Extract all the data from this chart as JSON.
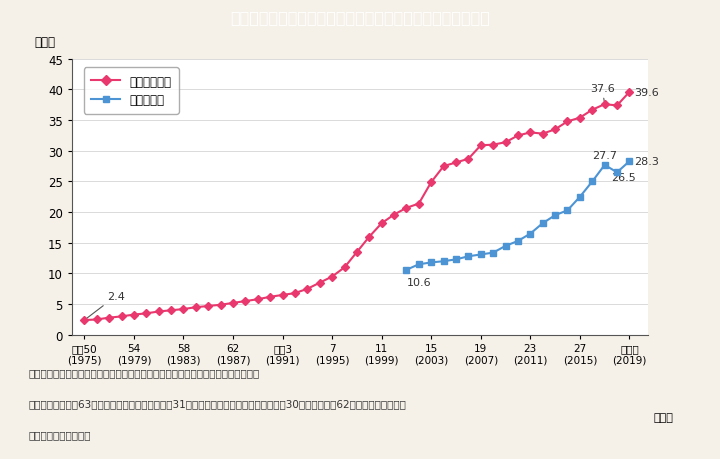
{
  "title": "Ｉ－１－５図　国の審議会等における女性委員の割合の推移",
  "title_bg_color": "#00bcd4",
  "title_text_color": "#ffffff",
  "bg_color": "#f5f0e8",
  "plot_bg_color": "#ffffff",
  "ylabel": "（％）",
  "xlabel_year": "（年）",
  "ylim": [
    0,
    45
  ],
  "yticks": [
    0,
    5,
    10,
    15,
    20,
    25,
    30,
    35,
    40,
    45
  ],
  "xtick_labels": [
    "昭和50\n(1975)",
    "54\n(1979)",
    "58\n(1983)",
    "62\n(1987)",
    "平成3\n(1991)",
    "7\n(1995)",
    "11\n(1999)",
    "15\n(2003)",
    "19\n(2007)",
    "23\n(2011)",
    "27\n(2015)",
    "令和元\n(2019)"
  ],
  "xtick_years": [
    1975,
    1979,
    1983,
    1987,
    1991,
    1995,
    1999,
    2003,
    2007,
    2011,
    2015,
    2019
  ],
  "series1_label": "審議会等委員",
  "series1_color": "#e8386d",
  "series1_marker": "D",
  "series1_x": [
    1975,
    1976,
    1977,
    1978,
    1979,
    1980,
    1981,
    1982,
    1983,
    1984,
    1985,
    1986,
    1987,
    1988,
    1989,
    1990,
    1991,
    1992,
    1993,
    1994,
    1995,
    1996,
    1997,
    1998,
    1999,
    2000,
    2001,
    2002,
    2003,
    2004,
    2005,
    2006,
    2007,
    2008,
    2009,
    2010,
    2011,
    2012,
    2013,
    2014,
    2015,
    2016,
    2017,
    2018,
    2019
  ],
  "series1_y": [
    2.4,
    2.5,
    2.8,
    3.0,
    3.3,
    3.5,
    3.8,
    4.0,
    4.2,
    4.5,
    4.7,
    4.9,
    5.2,
    5.5,
    5.8,
    6.2,
    6.5,
    6.8,
    7.5,
    8.5,
    9.5,
    11.0,
    13.5,
    16.0,
    18.2,
    19.6,
    20.7,
    21.4,
    24.9,
    27.5,
    28.1,
    28.7,
    30.9,
    31.0,
    31.4,
    32.5,
    33.0,
    32.8,
    33.5,
    34.8,
    35.4,
    36.7,
    37.6,
    37.4,
    39.6
  ],
  "series2_label": "専門委員等",
  "series2_color": "#4d94d4",
  "series2_marker": "s",
  "series2_x": [
    2001,
    2002,
    2003,
    2004,
    2005,
    2006,
    2007,
    2008,
    2009,
    2010,
    2011,
    2012,
    2013,
    2014,
    2015,
    2016,
    2017,
    2018,
    2019
  ],
  "series2_y": [
    10.6,
    11.5,
    11.8,
    12.0,
    12.3,
    12.8,
    13.1,
    13.4,
    14.5,
    15.3,
    16.5,
    18.2,
    19.5,
    20.3,
    22.5,
    25.0,
    27.7,
    26.5,
    28.3
  ],
  "footnote_line1": "（備考）１．内閣府「国の審議会等における女性委員の参画状況調べ」より作成。",
  "footnote_line2": "　　　　２．昭和63年から平成６年は，各年３月31日現在。平成７年以降は，各年９月30日現在。昭和62年以前は，年により",
  "footnote_line3": "　　　　　　異なる。",
  "marker_size": 4,
  "line_width": 1.5
}
